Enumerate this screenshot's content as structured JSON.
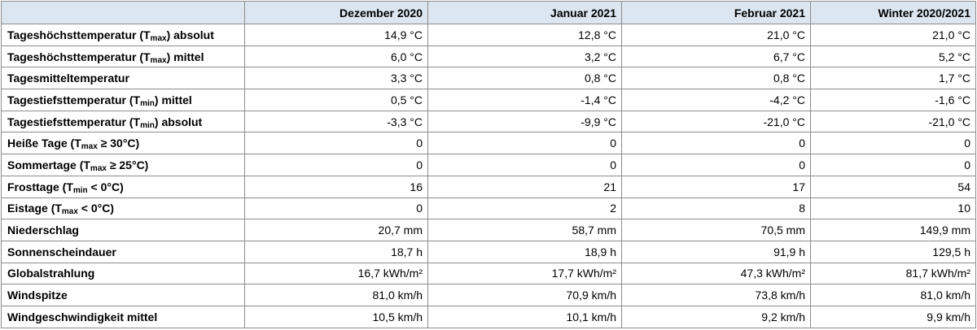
{
  "table": {
    "header": [
      "Dezember 2020",
      "Januar 2021",
      "Februar 2021",
      "Winter 2020/2021"
    ],
    "rows": [
      {
        "label": [
          {
            "text": "Tageshöchsttemperatur (T"
          },
          {
            "sub": "max"
          },
          {
            "text": ") absolut"
          }
        ],
        "values": [
          "14,9 °C",
          "12,8 °C",
          "21,0 °C",
          "21,0 °C"
        ]
      },
      {
        "label": [
          {
            "text": "Tageshöchsttemperatur (T"
          },
          {
            "sub": "max"
          },
          {
            "text": ") mittel"
          }
        ],
        "values": [
          "6,0 °C",
          "3,2 °C",
          "6,7 °C",
          "5,2 °C"
        ]
      },
      {
        "label": [
          {
            "text": "Tagesmitteltemperatur"
          }
        ],
        "values": [
          "3,3 °C",
          "0,8 °C",
          "0,8 °C",
          "1,7 °C"
        ]
      },
      {
        "label": [
          {
            "text": "Tagestiefsttemperatur (T"
          },
          {
            "sub": "min"
          },
          {
            "text": ") mittel"
          }
        ],
        "values": [
          "0,5 °C",
          "-1,4 °C",
          "-4,2 °C",
          "-1,6 °C"
        ]
      },
      {
        "label": [
          {
            "text": "Tagestiefsttemperatur (T"
          },
          {
            "sub": "min"
          },
          {
            "text": ") absolut"
          }
        ],
        "values": [
          "-3,3 °C",
          "-9,9 °C",
          "-21,0 °C",
          "-21,0 °C"
        ]
      },
      {
        "label": [
          {
            "text": "Heiße Tage (T"
          },
          {
            "sub": "max"
          },
          {
            "text": " ≥ 30°C)"
          }
        ],
        "values": [
          0,
          0,
          0,
          0
        ]
      },
      {
        "label": [
          {
            "text": "Sommertage (T"
          },
          {
            "sub": "max"
          },
          {
            "text": " ≥ 25°C)"
          }
        ],
        "values": [
          0,
          0,
          0,
          0
        ]
      },
      {
        "label": [
          {
            "text": "Frosttage (T"
          },
          {
            "sub": "min"
          },
          {
            "text": " < 0°C)"
          }
        ],
        "values": [
          16,
          21,
          17,
          54
        ]
      },
      {
        "label": [
          {
            "text": "Eistage (T"
          },
          {
            "sub": "max"
          },
          {
            "text": " < 0°C)"
          }
        ],
        "values": [
          0,
          2,
          8,
          10
        ]
      },
      {
        "label": [
          {
            "text": "Niederschlag"
          }
        ],
        "values": [
          "20,7 mm",
          "58,7 mm",
          "70,5 mm",
          "149,9 mm"
        ]
      },
      {
        "label": [
          {
            "text": "Sonnenscheindauer"
          }
        ],
        "values": [
          "18,7 h",
          "18,9 h",
          "91,9 h",
          "129,5 h"
        ]
      },
      {
        "label": [
          {
            "text": "Globalstrahlung"
          }
        ],
        "values": [
          "16,7 kWh/m²",
          "17,7 kWh/m²",
          "47,3 kWh/m²",
          "81,7 kWh/m²"
        ]
      },
      {
        "label": [
          {
            "text": "Windspitze"
          }
        ],
        "values": [
          "81,0 km/h",
          "70,9 km/h",
          "73,8 km/h",
          "81,0 km/h"
        ]
      },
      {
        "label": [
          {
            "text": "Windgeschwindigkeit mittel"
          }
        ],
        "values": [
          "10,5 km/h",
          "10,1 km/h",
          "9,2 km/h",
          "9,9 km/h"
        ]
      }
    ]
  }
}
